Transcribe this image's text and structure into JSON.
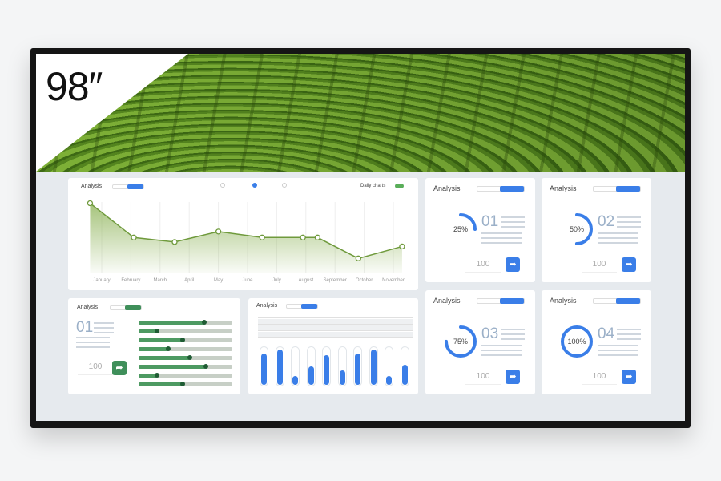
{
  "badge": {
    "size_label": "98″"
  },
  "line_panel": {
    "title": "Analysis",
    "daily_label": "Daily charts",
    "toggle_on": true,
    "chart_data": {
      "type": "area",
      "categories": [
        "January",
        "February",
        "March",
        "April",
        "May",
        "June",
        "July",
        "August",
        "September",
        "October",
        "November"
      ],
      "x": [
        -0.4,
        1.1,
        2.5,
        4.0,
        5.5,
        6.9,
        7.4,
        8.8,
        10.3
      ],
      "values": [
        93,
        47,
        41,
        55,
        47,
        47,
        47,
        19,
        35
      ],
      "ylim": [
        0,
        100
      ],
      "grid": true,
      "color": "#6f9a3c"
    }
  },
  "slider_panel": {
    "title": "Analysis",
    "number": "01",
    "value": "100",
    "accent": "#3f8f5a",
    "levels": [
      0.7,
      0.2,
      0.47,
      0.32,
      0.55,
      0.72,
      0.2,
      0.47
    ]
  },
  "bar_panel": {
    "title": "Analysis",
    "chart_data": {
      "type": "bar",
      "values": [
        0.85,
        0.95,
        0.25,
        0.5,
        0.8,
        0.4,
        0.85,
        0.95,
        0.25,
        0.55
      ],
      "ylim": [
        0,
        1
      ],
      "color": "#3a7ee8"
    }
  },
  "cards": [
    {
      "title": "Analysis",
      "percent": "25%",
      "progress": 0.25,
      "number": "01",
      "value": "100"
    },
    {
      "title": "Analysis",
      "percent": "50%",
      "progress": 0.5,
      "number": "02",
      "value": "100"
    },
    {
      "title": "Analysis",
      "percent": "75%",
      "progress": 0.75,
      "number": "03",
      "value": "100"
    },
    {
      "title": "Analysis",
      "percent": "100%",
      "progress": 1.0,
      "number": "04",
      "value": "100"
    }
  ],
  "colors": {
    "blue": "#3a7ee8",
    "green": "#3f8f5a"
  },
  "icons": {
    "action": "share-arrow-icon"
  }
}
